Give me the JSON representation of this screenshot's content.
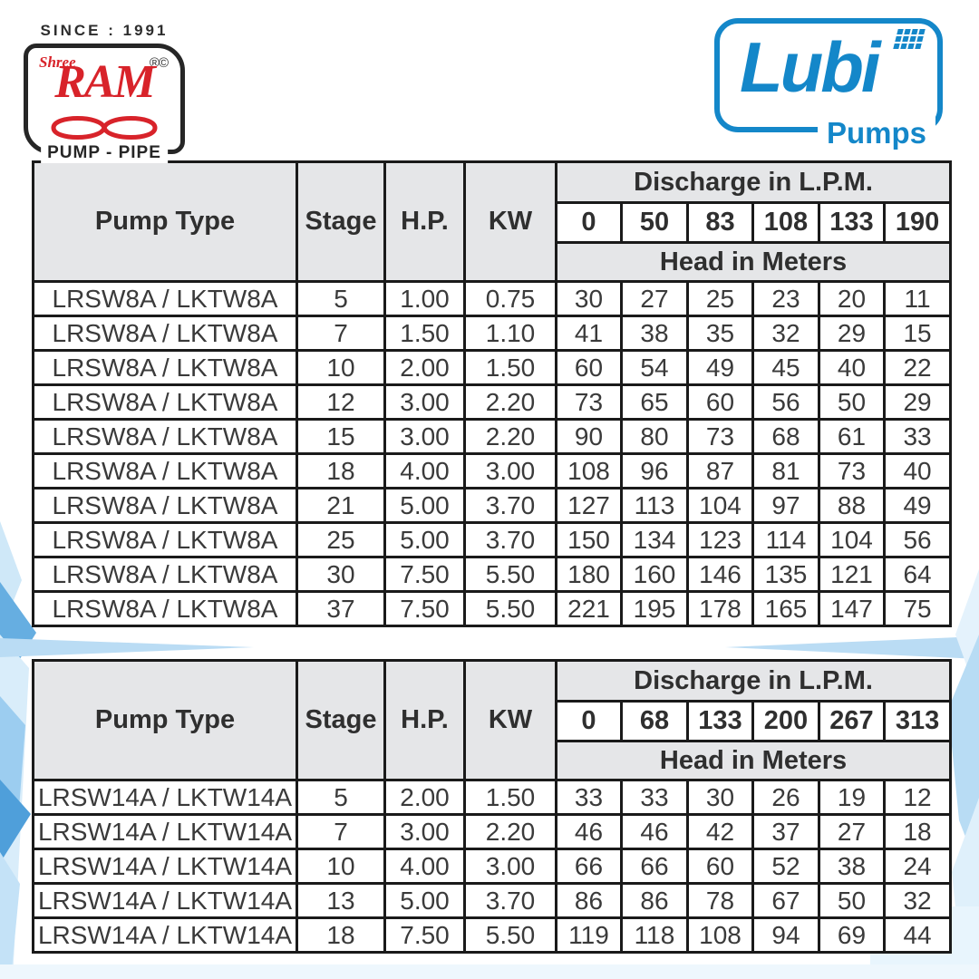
{
  "branding": {
    "since_label": "SINCE : 1991",
    "shree_ram": {
      "shree": "Shree",
      "name": "RAM",
      "trademarks": "®©",
      "tagline": "PUMP - PIPE"
    },
    "lubi": {
      "name": "Lubi",
      "tagline": "Pumps"
    }
  },
  "colors": {
    "lubi_blue": "#1487c9",
    "ram_red": "#d8232a",
    "table_header_bg": "#e5e6e8",
    "table_border": "#1a1a1a",
    "decor_blue_light": "#cfe8f8",
    "decor_blue_mid": "#66aee1"
  },
  "tables": [
    {
      "headers": {
        "pump_type": "Pump Type",
        "stage": "Stage",
        "hp": "H.P.",
        "kw": "KW",
        "discharge": "Discharge in L.P.M.",
        "head": "Head in Meters"
      },
      "discharge_values": [
        "0",
        "50",
        "83",
        "108",
        "133",
        "190"
      ],
      "rows": [
        {
          "pump_type": "LRSW8A / LKTW8A",
          "stage": "5",
          "hp": "1.00",
          "kw": "0.75",
          "head": [
            "30",
            "27",
            "25",
            "23",
            "20",
            "11"
          ]
        },
        {
          "pump_type": "LRSW8A / LKTW8A",
          "stage": "7",
          "hp": "1.50",
          "kw": "1.10",
          "head": [
            "41",
            "38",
            "35",
            "32",
            "29",
            "15"
          ]
        },
        {
          "pump_type": "LRSW8A / LKTW8A",
          "stage": "10",
          "hp": "2.00",
          "kw": "1.50",
          "head": [
            "60",
            "54",
            "49",
            "45",
            "40",
            "22"
          ]
        },
        {
          "pump_type": "LRSW8A / LKTW8A",
          "stage": "12",
          "hp": "3.00",
          "kw": "2.20",
          "head": [
            "73",
            "65",
            "60",
            "56",
            "50",
            "29"
          ]
        },
        {
          "pump_type": "LRSW8A / LKTW8A",
          "stage": "15",
          "hp": "3.00",
          "kw": "2.20",
          "head": [
            "90",
            "80",
            "73",
            "68",
            "61",
            "33"
          ]
        },
        {
          "pump_type": "LRSW8A / LKTW8A",
          "stage": "18",
          "hp": "4.00",
          "kw": "3.00",
          "head": [
            "108",
            "96",
            "87",
            "81",
            "73",
            "40"
          ]
        },
        {
          "pump_type": "LRSW8A / LKTW8A",
          "stage": "21",
          "hp": "5.00",
          "kw": "3.70",
          "head": [
            "127",
            "113",
            "104",
            "97",
            "88",
            "49"
          ]
        },
        {
          "pump_type": "LRSW8A / LKTW8A",
          "stage": "25",
          "hp": "5.00",
          "kw": "3.70",
          "head": [
            "150",
            "134",
            "123",
            "114",
            "104",
            "56"
          ]
        },
        {
          "pump_type": "LRSW8A / LKTW8A",
          "stage": "30",
          "hp": "7.50",
          "kw": "5.50",
          "head": [
            "180",
            "160",
            "146",
            "135",
            "121",
            "64"
          ]
        },
        {
          "pump_type": "LRSW8A / LKTW8A",
          "stage": "37",
          "hp": "7.50",
          "kw": "5.50",
          "head": [
            "221",
            "195",
            "178",
            "165",
            "147",
            "75"
          ]
        }
      ]
    },
    {
      "headers": {
        "pump_type": "Pump Type",
        "stage": "Stage",
        "hp": "H.P.",
        "kw": "KW",
        "discharge": "Discharge in L.P.M.",
        "head": "Head in Meters"
      },
      "discharge_values": [
        "0",
        "68",
        "133",
        "200",
        "267",
        "313"
      ],
      "rows": [
        {
          "pump_type": "LRSW14A / LKTW14A",
          "stage": "5",
          "hp": "2.00",
          "kw": "1.50",
          "head": [
            "33",
            "33",
            "30",
            "26",
            "19",
            "12"
          ]
        },
        {
          "pump_type": "LRSW14A / LKTW14A",
          "stage": "7",
          "hp": "3.00",
          "kw": "2.20",
          "head": [
            "46",
            "46",
            "42",
            "37",
            "27",
            "18"
          ]
        },
        {
          "pump_type": "LRSW14A / LKTW14A",
          "stage": "10",
          "hp": "4.00",
          "kw": "3.00",
          "head": [
            "66",
            "66",
            "60",
            "52",
            "38",
            "24"
          ]
        },
        {
          "pump_type": "LRSW14A / LKTW14A",
          "stage": "13",
          "hp": "5.00",
          "kw": "3.70",
          "head": [
            "86",
            "86",
            "78",
            "67",
            "50",
            "32"
          ]
        },
        {
          "pump_type": "LRSW14A / LKTW14A",
          "stage": "18",
          "hp": "7.50",
          "kw": "5.50",
          "head": [
            "119",
            "118",
            "108",
            "94",
            "69",
            "44"
          ]
        }
      ]
    }
  ]
}
